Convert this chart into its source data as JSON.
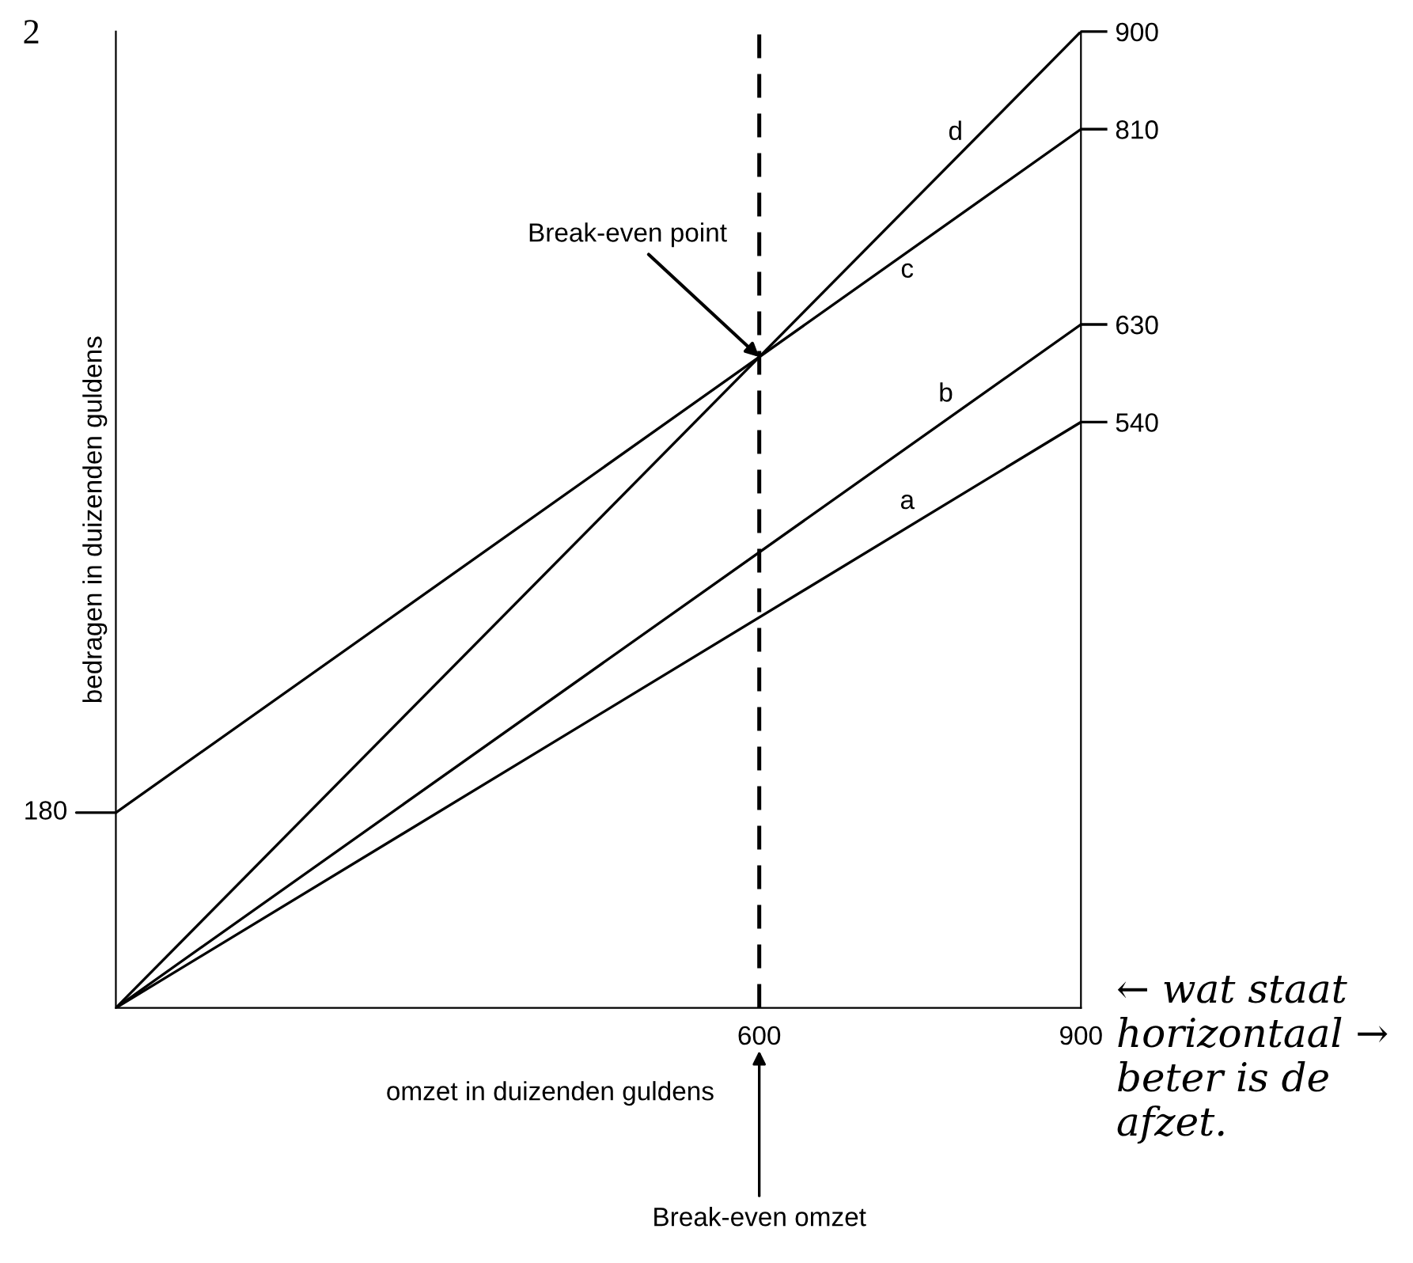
{
  "chart_data": {
    "type": "line",
    "xlabel": "omzet in duizenden guldens",
    "ylabel": "bedragen in duizenden guldens",
    "x": [
      0,
      900
    ],
    "series": [
      {
        "name": "a",
        "color": "#000000",
        "values": [
          0,
          540
        ]
      },
      {
        "name": "b",
        "color": "#000000",
        "values": [
          0,
          630
        ]
      },
      {
        "name": "c",
        "color": "#000000",
        "x": [
          0,
          900
        ],
        "values": [
          180,
          810
        ]
      },
      {
        "name": "d",
        "color": "#000000",
        "values": [
          0,
          900
        ]
      }
    ],
    "xlim": [
      0,
      900
    ],
    "xticks": [
      600,
      900
    ],
    "ylim": [
      0,
      900
    ],
    "yticks": [
      540,
      630,
      810,
      900
    ],
    "ref_lines": [
      {
        "axis": "x",
        "value": 600,
        "label": null,
        "color": "#000000",
        "line_style": "dashed"
      }
    ],
    "annotations": [
      "2",
      "← wat staat horizontaal → beter is de afzet.",
      {
        "text": "Break-even point",
        "x": 600,
        "y": 600
      },
      "Break-even omzet",
      {
        "text": "180",
        "x": 0,
        "y": 180
      }
    ],
    "grid": false,
    "legend": false,
    "marker": "none",
    "line_style": "solid"
  }
}
